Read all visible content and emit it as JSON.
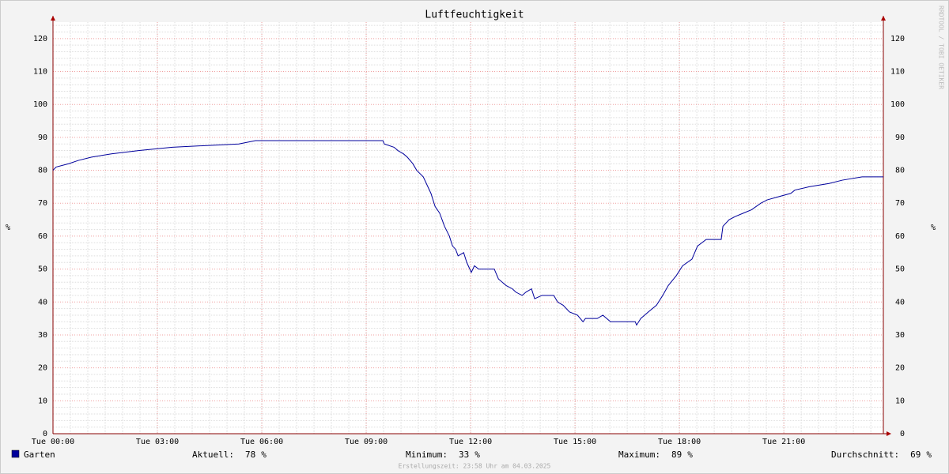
{
  "chart_data": {
    "type": "line",
    "title": "Luftfeuchtigkeit",
    "y_label": "%",
    "watermark": "RRDTOOL / TOBI OETIKER",
    "footer": "Erstellungszeit: 23:58 Uhr am 04.03.2025",
    "xlim": [
      0,
      23.86
    ],
    "xticks": [
      {
        "value": 0,
        "label": "Tue 00:00"
      },
      {
        "value": 3,
        "label": "Tue 03:00"
      },
      {
        "value": 6,
        "label": "Tue 06:00"
      },
      {
        "value": 9,
        "label": "Tue 09:00"
      },
      {
        "value": 12,
        "label": "Tue 12:00"
      },
      {
        "value": 15,
        "label": "Tue 15:00"
      },
      {
        "value": 18,
        "label": "Tue 18:00"
      },
      {
        "value": 21,
        "label": "Tue 21:00"
      }
    ],
    "ylim": [
      0,
      125
    ],
    "yticks": [
      0,
      10,
      20,
      30,
      40,
      50,
      60,
      70,
      80,
      90,
      100,
      110,
      120
    ],
    "grid": true,
    "x": [
      0,
      0.09,
      0.45,
      0.73,
      1.11,
      1.68,
      2.48,
      3.43,
      5.34,
      5.82,
      9.48,
      9.52,
      9.8,
      9.91,
      10.07,
      10.18,
      10.34,
      10.45,
      10.64,
      10.86,
      10.98,
      11.11,
      11.25,
      11.39,
      11.48,
      11.57,
      11.64,
      11.8,
      11.89,
      12.02,
      12.11,
      12.23,
      12.34,
      12.68,
      12.8,
      13.02,
      13.2,
      13.3,
      13.48,
      13.59,
      13.75,
      13.84,
      14.05,
      14.39,
      14.5,
      14.66,
      14.84,
      15.07,
      15.23,
      15.3,
      15.64,
      15.8,
      16.02,
      16.73,
      16.77,
      16.89,
      17.11,
      17.34,
      17.52,
      17.68,
      17.91,
      18.09,
      18.36,
      18.52,
      18.77,
      19.2,
      19.25,
      19.43,
      19.61,
      19.84,
      20.07,
      20.34,
      20.52,
      20.86,
      21.2,
      21.32,
      21.73,
      22.3,
      22.68,
      23.25,
      23.86
    ],
    "series": [
      {
        "name": "Garten",
        "color": "#00009c",
        "values": [
          80,
          81,
          82,
          83,
          84,
          85,
          86,
          87,
          88,
          89,
          89,
          88,
          87,
          86,
          85,
          84,
          82,
          80,
          78,
          73,
          69,
          67,
          63,
          60,
          57,
          56,
          54,
          55,
          52,
          49,
          51,
          50,
          50,
          50,
          47,
          45,
          44,
          43,
          42,
          43,
          44,
          41,
          42,
          42,
          40,
          39,
          37,
          36,
          34,
          35,
          35,
          36,
          34,
          34,
          33,
          35,
          37,
          39,
          42,
          45,
          48,
          51,
          53,
          57,
          59,
          59,
          63,
          65,
          66,
          67,
          68,
          70,
          71,
          72,
          73,
          74,
          75,
          76,
          77,
          78,
          78
        ]
      }
    ],
    "stats": [
      {
        "label": "Aktuell:",
        "value": 78
      },
      {
        "label": "Minimum:",
        "value": 33
      },
      {
        "label": "Maximum:",
        "value": 89
      },
      {
        "label": "Durchschnitt:",
        "value": 69
      }
    ]
  }
}
